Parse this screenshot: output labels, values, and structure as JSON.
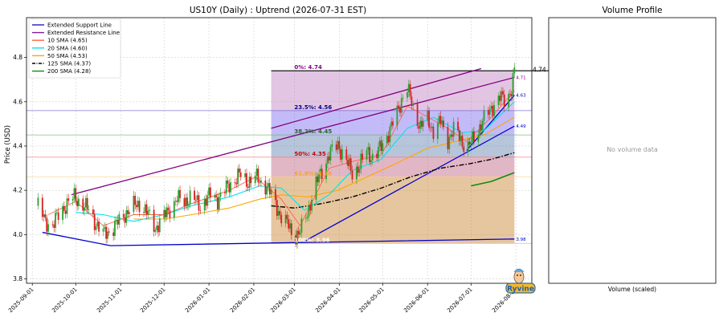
{
  "chart_data": [
    {
      "type": "candlestick",
      "title": "US10Y (Daily) : Uptrend (2026-07-31 EST)",
      "ylabel": "Price (USD)",
      "ylim": [
        3.78,
        4.98
      ],
      "xlim": [
        "2025-08-28",
        "2026-08-12"
      ],
      "yticks": [
        "3.8",
        "4.0",
        "4.2",
        "4.4",
        "4.6",
        "4.8"
      ],
      "yticks_values": [
        3.8,
        4.0,
        4.2,
        4.4,
        4.6,
        4.8
      ],
      "xticks": [
        "2025-09-01",
        "2025-10-01",
        "2025-11-01",
        "2025-12-01",
        "2026-01-01",
        "2026-02-01",
        "2026-03-01",
        "2026-04-01",
        "2026-05-01",
        "2026-06-01",
        "2026-07-01",
        "2026-08-01"
      ],
      "grid": true,
      "legend_placement": "top-left",
      "legend": [
        {
          "label": "Extended Support Line",
          "color": "#1f1fbf",
          "style": "solid"
        },
        {
          "label": "Extended Resistance Line",
          "color": "#7f1f9f",
          "style": "solid"
        },
        {
          "label": "10 SMA (4.65)",
          "color": "#ff6347",
          "style": "solid"
        },
        {
          "label": "20 SMA (4.60)",
          "color": "#00e5ee",
          "style": "solid"
        },
        {
          "label": "50 SMA (4.53)",
          "color": "#ffa500",
          "style": "solid"
        },
        {
          "label": "125 SMA (4.37)",
          "color": "#000000",
          "style": "dashdot"
        },
        {
          "label": "200 SMA (4.28)",
          "color": "#138a13",
          "style": "solid"
        }
      ],
      "price_points": [
        [
          "2025-09-05",
          4.13
        ],
        [
          "2025-09-10",
          4.06
        ],
        [
          "2025-09-15",
          4.04
        ],
        [
          "2025-09-20",
          4.1
        ],
        [
          "2025-09-25",
          4.14
        ],
        [
          "2025-09-30",
          4.17
        ],
        [
          "2025-10-05",
          4.14
        ],
        [
          "2025-10-10",
          4.11
        ],
        [
          "2025-10-15",
          4.05
        ],
        [
          "2025-10-20",
          4.0
        ],
        [
          "2025-10-25",
          4.02
        ],
        [
          "2025-10-31",
          4.06
        ],
        [
          "2025-11-05",
          4.1
        ],
        [
          "2025-11-10",
          4.13
        ],
        [
          "2025-11-15",
          4.14
        ],
        [
          "2025-11-20",
          4.09
        ],
        [
          "2025-11-25",
          4.03
        ],
        [
          "2025-12-01",
          4.08
        ],
        [
          "2025-12-05",
          4.12
        ],
        [
          "2025-12-10",
          4.16
        ],
        [
          "2025-12-15",
          4.15
        ],
        [
          "2025-12-20",
          4.17
        ],
        [
          "2025-12-26",
          4.13
        ],
        [
          "2026-01-02",
          4.18
        ],
        [
          "2026-01-07",
          4.16
        ],
        [
          "2026-01-12",
          4.2
        ],
        [
          "2026-01-16",
          4.23
        ],
        [
          "2026-01-22",
          4.27
        ],
        [
          "2026-01-27",
          4.24
        ],
        [
          "2026-02-02",
          4.26
        ],
        [
          "2026-02-05",
          4.24
        ],
        [
          "2026-02-10",
          4.22
        ],
        [
          "2026-02-15",
          4.15
        ],
        [
          "2026-02-20",
          4.08
        ],
        [
          "2026-02-25",
          4.04
        ],
        [
          "2026-03-01",
          3.99
        ],
        [
          "2026-03-05",
          4.01
        ],
        [
          "2026-03-10",
          4.1
        ],
        [
          "2026-03-15",
          4.21
        ],
        [
          "2026-03-20",
          4.29
        ],
        [
          "2026-03-25",
          4.36
        ],
        [
          "2026-03-31",
          4.41
        ],
        [
          "2026-04-05",
          4.34
        ],
        [
          "2026-04-10",
          4.28
        ],
        [
          "2026-04-15",
          4.31
        ],
        [
          "2026-04-20",
          4.38
        ],
        [
          "2026-04-25",
          4.34
        ],
        [
          "2026-04-30",
          4.4
        ],
        [
          "2026-05-05",
          4.46
        ],
        [
          "2026-05-10",
          4.53
        ],
        [
          "2026-05-15",
          4.63
        ],
        [
          "2026-05-18",
          4.66
        ],
        [
          "2026-05-22",
          4.57
        ],
        [
          "2026-05-27",
          4.49
        ],
        [
          "2026-06-01",
          4.52
        ],
        [
          "2026-06-05",
          4.47
        ],
        [
          "2026-06-10",
          4.51
        ],
        [
          "2026-06-15",
          4.43
        ],
        [
          "2026-06-20",
          4.48
        ],
        [
          "2026-06-25",
          4.42
        ],
        [
          "2026-06-28",
          4.38
        ],
        [
          "2026-07-03",
          4.44
        ],
        [
          "2026-07-08",
          4.5
        ],
        [
          "2026-07-13",
          4.55
        ],
        [
          "2026-07-17",
          4.59
        ],
        [
          "2026-07-21",
          4.62
        ],
        [
          "2026-07-25",
          4.6
        ],
        [
          "2026-07-29",
          4.66
        ],
        [
          "2026-07-31",
          4.74
        ]
      ],
      "fibonacci_retracement": {
        "start_date": "2026-02-13",
        "end_date": "2026-07-31",
        "levels": [
          {
            "label": "0%: 4.74",
            "value": 4.74,
            "fill": "#bf7fbf",
            "line": "#000000",
            "text_color": "#7f007f"
          },
          {
            "label": "23.5%: 4.56",
            "value": 4.56,
            "fill": "#7b68ee",
            "line": "#6a5acd",
            "text_color": "#00008b"
          },
          {
            "label": "38.2%: 4.45",
            "value": 4.45,
            "fill": "#5f7fb0",
            "line": "#5cb85c",
            "text_color": "#1d6a1d"
          },
          {
            "label": "50%: 4.35",
            "value": 4.35,
            "fill": "#bf5f7f",
            "line": "#ff6b6b",
            "text_color": "#cc0000"
          },
          {
            "label": "61.8%: 4.26",
            "value": 4.26,
            "fill": "#c8802a",
            "line": "#ffd27f",
            "text_color": "#f5a623"
          },
          {
            "label": "100%: 3.96",
            "value": 3.96,
            "line": "#d8bfd8",
            "text_color": "#ffffff"
          }
        ]
      },
      "resistance_line": {
        "points": [
          [
            "2025-09-28",
            4.18
          ],
          [
            "2026-07-31",
            4.71
          ]
        ],
        "color": "#800080",
        "label": "4.71"
      },
      "resistance_line_upper": {
        "points": [
          [
            "2026-02-13",
            4.48
          ],
          [
            "2026-07-08",
            4.75
          ]
        ],
        "color": "#800080"
      },
      "support_line": {
        "points": [
          [
            "2025-09-08",
            4.01
          ],
          [
            "2025-10-25",
            3.95
          ],
          [
            "2026-07-31",
            3.98
          ]
        ],
        "color": "#0000cd",
        "label": "3.98"
      },
      "support_line_2": {
        "points": [
          [
            "2026-03-08",
            3.97
          ],
          [
            "2026-07-31",
            4.49
          ]
        ],
        "color": "#0000cd",
        "label": "4.49"
      },
      "support_line_3": {
        "points": [
          [
            "2026-06-28",
            4.38
          ],
          [
            "2026-07-31",
            4.63
          ]
        ],
        "color": "#0000cd",
        "label": "4.63"
      },
      "sma_10": [
        [
          "2025-09-12",
          4.09
        ],
        [
          "2025-10-01",
          4.15
        ],
        [
          "2025-10-20",
          4.04
        ],
        [
          "2025-11-10",
          4.09
        ],
        [
          "2025-12-01",
          4.09
        ],
        [
          "2025-12-20",
          4.14
        ],
        [
          "2026-01-15",
          4.2
        ],
        [
          "2026-02-02",
          4.26
        ],
        [
          "2026-02-20",
          4.16
        ],
        [
          "2026-03-05",
          4.04
        ],
        [
          "2026-03-25",
          4.3
        ],
        [
          "2026-04-10",
          4.33
        ],
        [
          "2026-04-30",
          4.36
        ],
        [
          "2026-05-18",
          4.58
        ],
        [
          "2026-05-27",
          4.55
        ],
        [
          "2026-06-15",
          4.48
        ],
        [
          "2026-06-28",
          4.42
        ],
        [
          "2026-07-15",
          4.53
        ],
        [
          "2026-07-31",
          4.65
        ]
      ],
      "sma_20": [
        [
          "2025-10-01",
          4.1
        ],
        [
          "2025-10-20",
          4.09
        ],
        [
          "2025-11-10",
          4.06
        ],
        [
          "2025-12-01",
          4.09
        ],
        [
          "2025-12-20",
          4.13
        ],
        [
          "2026-01-15",
          4.17
        ],
        [
          "2026-02-05",
          4.22
        ],
        [
          "2026-02-20",
          4.21
        ],
        [
          "2026-03-08",
          4.11
        ],
        [
          "2026-03-25",
          4.18
        ],
        [
          "2026-04-10",
          4.29
        ],
        [
          "2026-04-30",
          4.34
        ],
        [
          "2026-05-18",
          4.48
        ],
        [
          "2026-06-05",
          4.53
        ],
        [
          "2026-06-25",
          4.46
        ],
        [
          "2026-07-10",
          4.47
        ],
        [
          "2026-07-31",
          4.6
        ]
      ],
      "sma_50": [
        [
          "2025-11-10",
          4.07
        ],
        [
          "2025-12-01",
          4.07
        ],
        [
          "2025-12-20",
          4.09
        ],
        [
          "2026-01-15",
          4.12
        ],
        [
          "2026-02-05",
          4.16
        ],
        [
          "2026-02-20",
          4.18
        ],
        [
          "2026-03-10",
          4.17
        ],
        [
          "2026-03-31",
          4.2
        ],
        [
          "2026-04-20",
          4.26
        ],
        [
          "2026-05-10",
          4.32
        ],
        [
          "2026-06-01",
          4.39
        ],
        [
          "2026-06-20",
          4.42
        ],
        [
          "2026-07-10",
          4.45
        ],
        [
          "2026-07-31",
          4.53
        ]
      ],
      "sma_125": [
        [
          "2026-02-13",
          4.13
        ],
        [
          "2026-03-01",
          4.12
        ],
        [
          "2026-03-20",
          4.14
        ],
        [
          "2026-04-10",
          4.17
        ],
        [
          "2026-04-30",
          4.21
        ],
        [
          "2026-05-20",
          4.26
        ],
        [
          "2026-06-10",
          4.3
        ],
        [
          "2026-06-30",
          4.32
        ],
        [
          "2026-07-15",
          4.34
        ],
        [
          "2026-07-31",
          4.37
        ]
      ],
      "sma_200": [
        [
          "2026-07-01",
          4.22
        ],
        [
          "2026-07-15",
          4.24
        ],
        [
          "2026-07-31",
          4.28
        ]
      ],
      "last_price_label": "4.74"
    },
    {
      "type": "bar",
      "title": "Volume Profile",
      "xlabel": "Volume (scaled)",
      "annotation": "No volume data"
    }
  ],
  "watermark": "Ryvine"
}
